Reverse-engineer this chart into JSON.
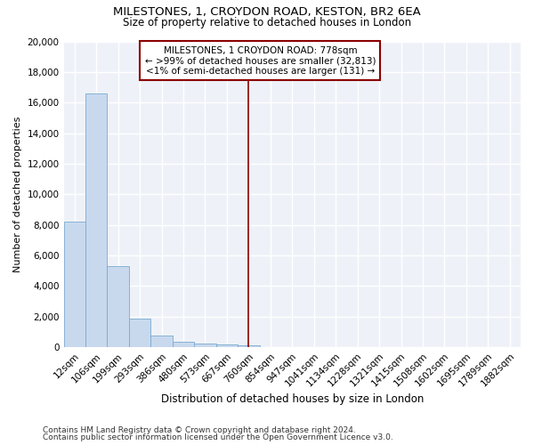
{
  "title": "MILESTONES, 1, CROYDON ROAD, KESTON, BR2 6EA",
  "subtitle": "Size of property relative to detached houses in London",
  "xlabel": "Distribution of detached houses by size in London",
  "ylabel": "Number of detached properties",
  "categories": [
    "12sqm",
    "106sqm",
    "199sqm",
    "293sqm",
    "386sqm",
    "480sqm",
    "573sqm",
    "667sqm",
    "760sqm",
    "854sqm",
    "947sqm",
    "1041sqm",
    "1134sqm",
    "1228sqm",
    "1321sqm",
    "1415sqm",
    "1508sqm",
    "1602sqm",
    "1695sqm",
    "1789sqm",
    "1882sqm"
  ],
  "values": [
    8200,
    16600,
    5300,
    1850,
    750,
    330,
    225,
    175,
    120,
    0,
    0,
    0,
    0,
    0,
    0,
    0,
    0,
    0,
    0,
    0,
    0
  ],
  "bar_color": "#c8d9ee",
  "bar_edge_color": "#7aaad0",
  "vline_x": 8,
  "vline_color": "#8b0000",
  "annotation_line1": "MILESTONES, 1 CROYDON ROAD: 778sqm",
  "annotation_line2": "← >99% of detached houses are smaller (32,813)",
  "annotation_line3": "<1% of semi-detached houses are larger (131) →",
  "annotation_box_color": "#8b0000",
  "ylim": [
    0,
    20000
  ],
  "yticks": [
    0,
    2000,
    4000,
    6000,
    8000,
    10000,
    12000,
    14000,
    16000,
    18000,
    20000
  ],
  "background_color": "#eef2f8",
  "grid_color": "#ffffff",
  "footer_line1": "Contains HM Land Registry data © Crown copyright and database right 2024.",
  "footer_line2": "Contains public sector information licensed under the Open Government Licence v3.0.",
  "title_fontsize": 9.5,
  "subtitle_fontsize": 8.5,
  "xlabel_fontsize": 8.5,
  "ylabel_fontsize": 8,
  "tick_fontsize": 7.5,
  "annotation_fontsize": 7.5,
  "footer_fontsize": 6.5
}
